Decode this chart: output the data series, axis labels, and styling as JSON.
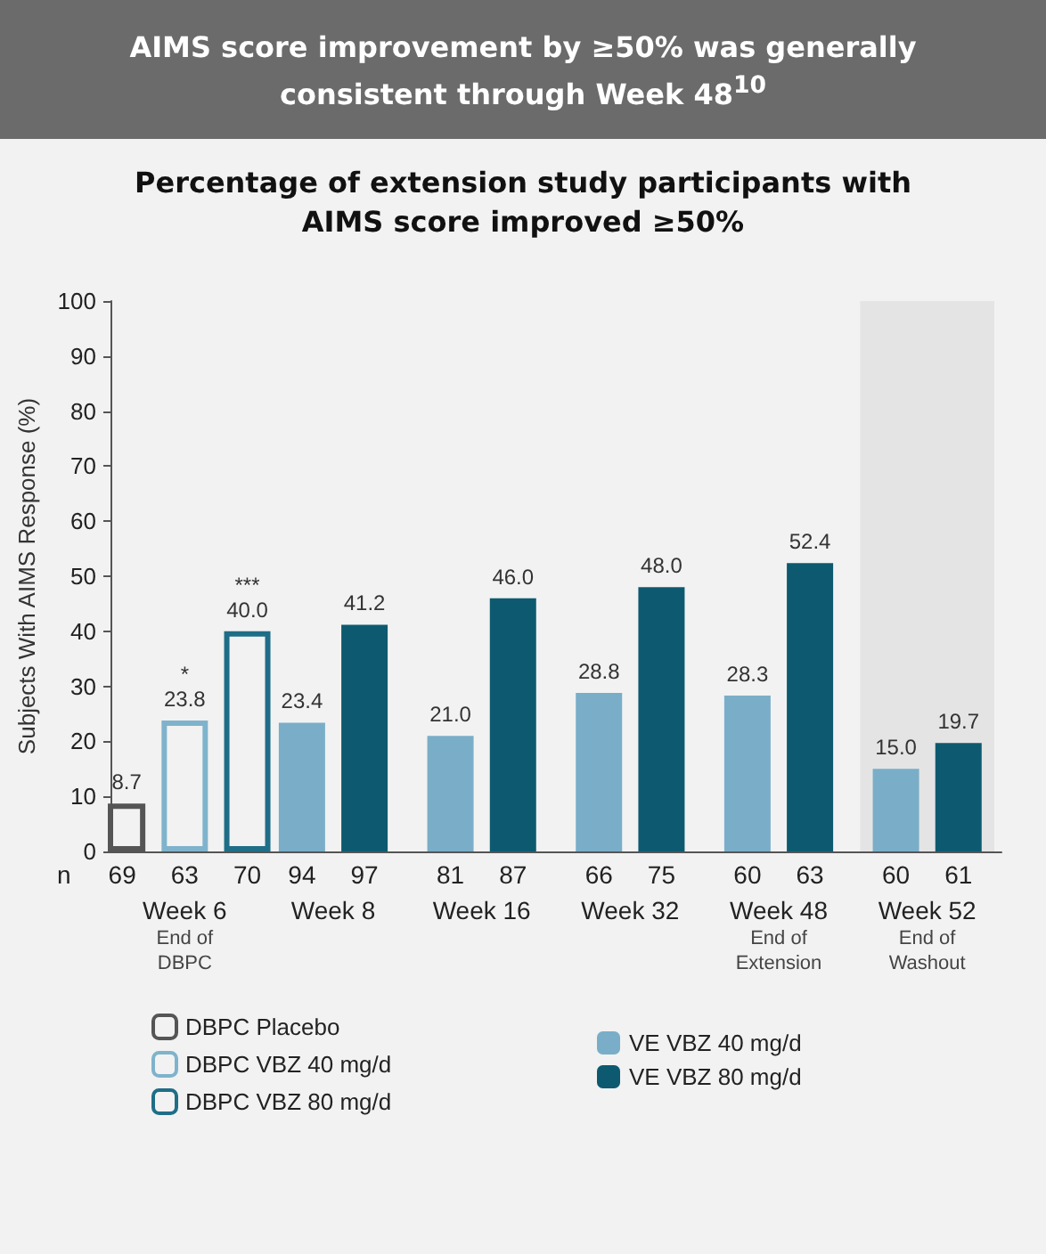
{
  "chart_data": {
    "type": "bar",
    "title": "AIMS score improvement by ≥50% was generally consistent through Week 48$^{10}$",
    "subtitle": "Percentage of extension study participants with AIMS score improved ≥50%",
    "ylabel": "Subjects With AIMS Response (%)",
    "categories": [
      "Week 6\nEnd of\nDBPC",
      "Week 8",
      "Week 16",
      "Week 32",
      "Week 48\nEnd of\nExtension",
      "Week 52\nEnd of\nWashout"
    ],
    "series": [
      {
        "name": "DBPC Placebo",
        "color": "#555555",
        "values": [
          8.7,
          null,
          null,
          null,
          null,
          null
        ],
        "value_labels": [
          "8.7",
          null,
          null,
          null,
          null,
          null
        ]
      },
      {
        "name": "DBPC VBZ 40 mg/d",
        "color": "#7fb3cc",
        "values": [
          23.8,
          null,
          null,
          null,
          null,
          null
        ],
        "value_labels": [
          "*\n23.8",
          null,
          null,
          null,
          null,
          null
        ]
      },
      {
        "name": "DBPC VBZ 80 mg/d",
        "color": "#1f6e87",
        "values": [
          40.0,
          null,
          null,
          null,
          null,
          null
        ],
        "value_labels": [
          "***\n40.0",
          null,
          null,
          null,
          null,
          null
        ]
      },
      {
        "name": "VE VBZ 40 mg/d",
        "color": "#7aaec8",
        "values": [
          null,
          23.4,
          21.0,
          28.8,
          28.3,
          15.0
        ],
        "value_labels": [
          null,
          "23.4",
          "21.0",
          "28.8",
          "28.3",
          "15.0"
        ]
      },
      {
        "name": "VE VBZ 80 mg/d",
        "color": "#0d5a70",
        "values": [
          null,
          41.2,
          46.0,
          48.0,
          52.4,
          19.7
        ],
        "value_labels": [
          null,
          "41.2",
          "46.0",
          "48.0",
          "52.4",
          "19.7"
        ]
      }
    ],
    "ylim": [
      0,
      100
    ],
    "yticks": [
      0,
      10,
      20,
      30,
      40,
      50,
      60,
      70,
      80,
      90,
      100
    ],
    "bands": [
      {
        "axis": "x",
        "from": "Week 52\nEnd of\nWashout",
        "to": "Week 52\nEnd of\nWashout",
        "color": "#e4e4e4"
      }
    ],
    "annotations": [
      "n",
      "69",
      "63",
      "70",
      "94",
      "97",
      "81",
      "87",
      "66",
      "75",
      "60",
      "63",
      "60",
      "61"
    ],
    "data_labels": false,
    "grid": false,
    "legend": "bottom"
  }
}
